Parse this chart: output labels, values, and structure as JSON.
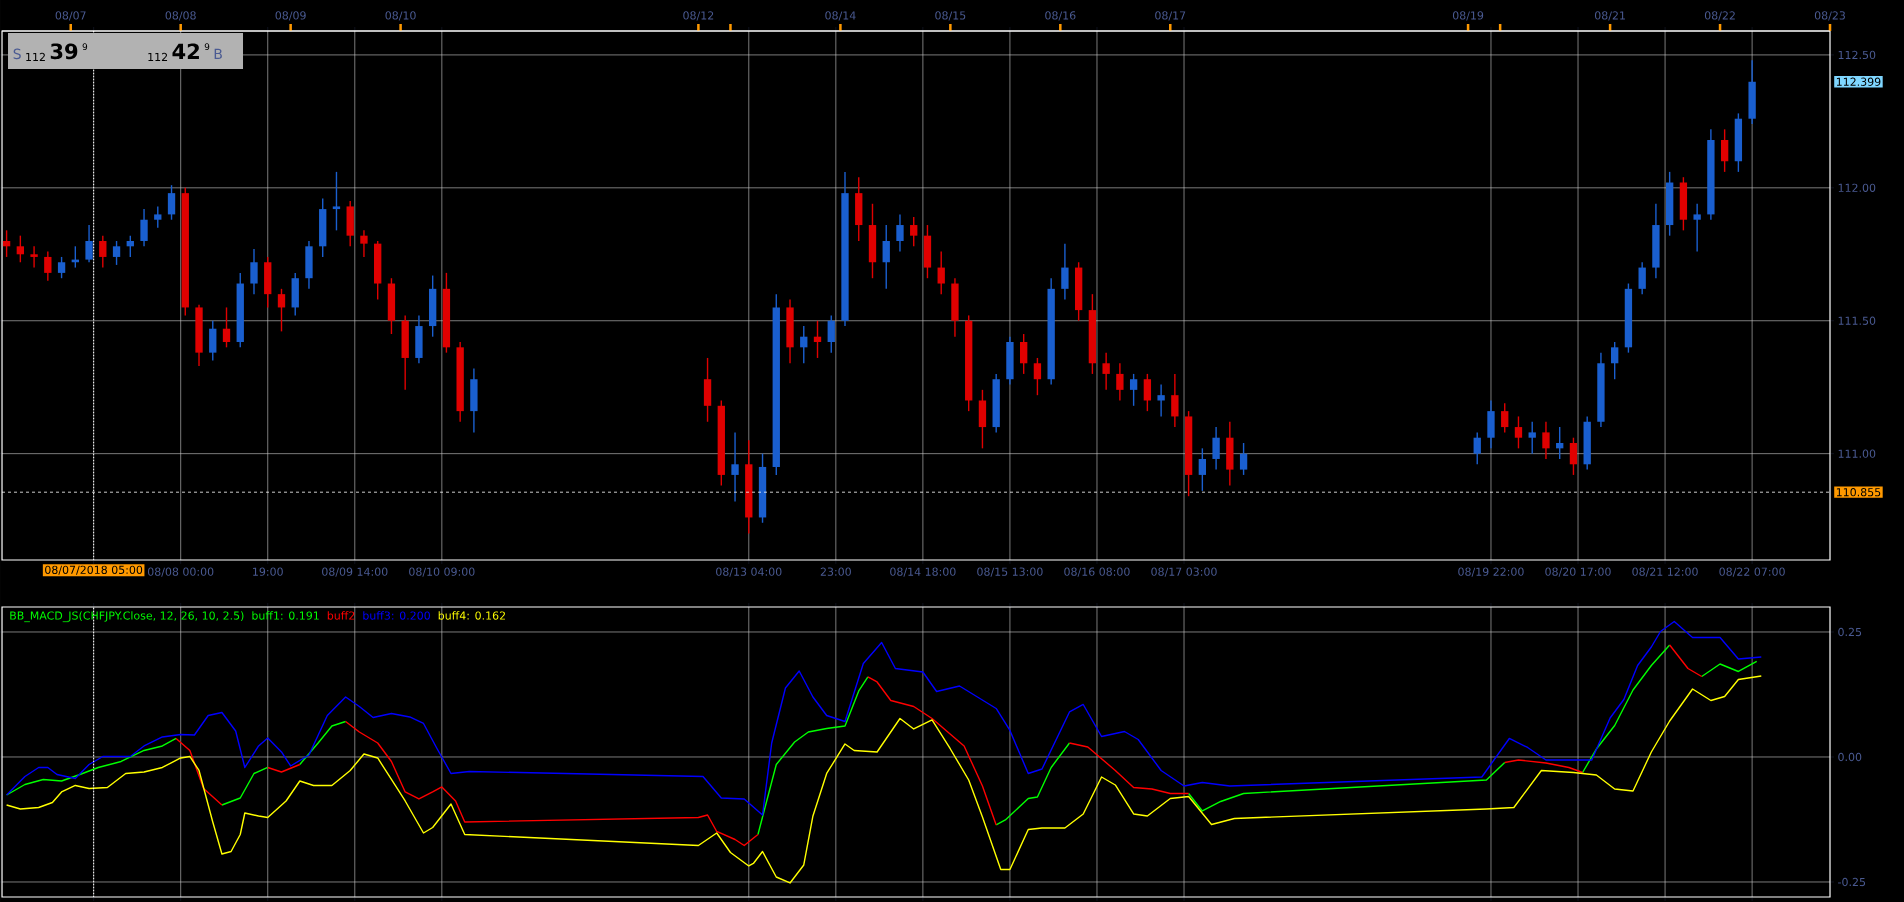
{
  "chart_data": [
    {
      "type": "candlestick",
      "x": [
        "2018-08-06T10:00",
        "2018-08-06T13:00",
        "2018-08-06T16:00",
        "2018-08-06T19:00",
        "2018-08-06T22:00",
        "2018-08-07T01:00",
        "2018-08-07T04:00",
        "2018-08-07T07:00",
        "2018-08-07T10:00",
        "2018-08-07T13:00",
        "2018-08-07T16:00",
        "2018-08-07T19:00",
        "2018-08-07T22:00",
        "2018-08-08T01:00",
        "2018-08-08T04:00",
        "2018-08-08T07:00",
        "2018-08-08T10:00",
        "2018-08-08T13:00",
        "2018-08-08T16:00",
        "2018-08-08T19:00",
        "2018-08-08T22:00",
        "2018-08-09T01:00",
        "2018-08-09T04:00",
        "2018-08-09T07:00",
        "2018-08-09T10:00",
        "2018-08-09T13:00",
        "2018-08-09T16:00",
        "2018-08-09T19:00",
        "2018-08-09T22:00",
        "2018-08-10T01:00",
        "2018-08-10T04:00",
        "2018-08-10T07:00",
        "2018-08-10T10:00",
        "2018-08-10T13:00",
        "2018-08-10T16:00",
        "2018-08-12T19:00",
        "2018-08-12T22:00",
        "2018-08-13T01:00",
        "2018-08-13T04:00",
        "2018-08-13T07:00",
        "2018-08-13T10:00",
        "2018-08-13T13:00",
        "2018-08-13T16:00",
        "2018-08-13T19:00",
        "2018-08-13T22:00",
        "2018-08-14T01:00",
        "2018-08-14T04:00",
        "2018-08-14T07:00",
        "2018-08-14T10:00",
        "2018-08-14T13:00",
        "2018-08-14T16:00",
        "2018-08-14T19:00",
        "2018-08-14T22:00",
        "2018-08-15T01:00",
        "2018-08-15T04:00",
        "2018-08-15T07:00",
        "2018-08-15T10:00",
        "2018-08-15T13:00",
        "2018-08-15T16:00",
        "2018-08-15T19:00",
        "2018-08-15T22:00",
        "2018-08-16T01:00",
        "2018-08-16T04:00",
        "2018-08-16T07:00",
        "2018-08-16T10:00",
        "2018-08-16T13:00",
        "2018-08-16T16:00",
        "2018-08-16T19:00",
        "2018-08-16T22:00",
        "2018-08-17T01:00",
        "2018-08-17T04:00",
        "2018-08-17T07:00",
        "2018-08-17T10:00",
        "2018-08-17T13:00",
        "2018-08-17T16:00",
        "2018-08-19T19:00",
        "2018-08-19T22:00",
        "2018-08-20T01:00",
        "2018-08-20T04:00",
        "2018-08-20T07:00",
        "2018-08-20T10:00",
        "2018-08-20T13:00",
        "2018-08-20T16:00",
        "2018-08-20T19:00",
        "2018-08-20T22:00",
        "2018-08-21T01:00",
        "2018-08-21T04:00",
        "2018-08-21T07:00",
        "2018-08-21T10:00",
        "2018-08-21T13:00",
        "2018-08-21T16:00",
        "2018-08-21T19:00",
        "2018-08-21T22:00",
        "2018-08-22T01:00",
        "2018-08-22T04:00",
        "2018-08-22T07:00"
      ],
      "ohlc": [
        [
          111.8,
          111.84,
          111.74,
          111.78
        ],
        [
          111.78,
          111.82,
          111.72,
          111.75
        ],
        [
          111.75,
          111.78,
          111.7,
          111.74
        ],
        [
          111.74,
          111.76,
          111.65,
          111.68
        ],
        [
          111.68,
          111.74,
          111.66,
          111.72
        ],
        [
          111.72,
          111.78,
          111.7,
          111.73
        ],
        [
          111.73,
          111.86,
          111.72,
          111.8
        ],
        [
          111.8,
          111.82,
          111.7,
          111.74
        ],
        [
          111.74,
          111.8,
          111.71,
          111.78
        ],
        [
          111.78,
          111.82,
          111.74,
          111.8
        ],
        [
          111.8,
          111.92,
          111.78,
          111.88
        ],
        [
          111.88,
          111.93,
          111.85,
          111.9
        ],
        [
          111.9,
          112.01,
          111.88,
          111.98
        ],
        [
          111.98,
          112.0,
          111.52,
          111.55
        ],
        [
          111.55,
          111.56,
          111.33,
          111.38
        ],
        [
          111.38,
          111.5,
          111.35,
          111.47
        ],
        [
          111.47,
          111.55,
          111.4,
          111.42
        ],
        [
          111.42,
          111.68,
          111.4,
          111.64
        ],
        [
          111.64,
          111.77,
          111.6,
          111.72
        ],
        [
          111.72,
          111.74,
          111.55,
          111.6
        ],
        [
          111.6,
          111.62,
          111.46,
          111.55
        ],
        [
          111.55,
          111.68,
          111.52,
          111.66
        ],
        [
          111.66,
          111.8,
          111.62,
          111.78
        ],
        [
          111.78,
          111.96,
          111.74,
          111.92
        ],
        [
          111.92,
          112.06,
          111.84,
          111.93
        ],
        [
          111.93,
          111.95,
          111.78,
          111.82
        ],
        [
          111.82,
          111.84,
          111.74,
          111.79
        ],
        [
          111.79,
          111.8,
          111.58,
          111.64
        ],
        [
          111.64,
          111.66,
          111.45,
          111.5
        ],
        [
          111.5,
          111.52,
          111.24,
          111.36
        ],
        [
          111.36,
          111.52,
          111.34,
          111.48
        ],
        [
          111.48,
          111.67,
          111.44,
          111.62
        ],
        [
          111.62,
          111.68,
          111.38,
          111.4
        ],
        [
          111.4,
          111.42,
          111.12,
          111.16
        ],
        [
          111.16,
          111.32,
          111.08,
          111.28
        ],
        [
          111.28,
          111.36,
          111.12,
          111.18
        ],
        [
          111.18,
          111.2,
          110.88,
          110.92
        ],
        [
          110.92,
          111.08,
          110.82,
          110.96
        ],
        [
          110.96,
          111.05,
          110.7,
          110.76
        ],
        [
          110.76,
          111.0,
          110.74,
          110.95
        ],
        [
          110.95,
          111.6,
          110.92,
          111.55
        ],
        [
          111.55,
          111.58,
          111.34,
          111.4
        ],
        [
          111.4,
          111.48,
          111.34,
          111.44
        ],
        [
          111.44,
          111.5,
          111.36,
          111.42
        ],
        [
          111.42,
          111.52,
          111.38,
          111.5
        ],
        [
          111.5,
          112.06,
          111.48,
          111.98
        ],
        [
          111.98,
          112.04,
          111.8,
          111.86
        ],
        [
          111.86,
          111.94,
          111.66,
          111.72
        ],
        [
          111.72,
          111.86,
          111.62,
          111.8
        ],
        [
          111.8,
          111.9,
          111.76,
          111.86
        ],
        [
          111.86,
          111.89,
          111.78,
          111.82
        ],
        [
          111.82,
          111.86,
          111.66,
          111.7
        ],
        [
          111.7,
          111.76,
          111.6,
          111.64
        ],
        [
          111.64,
          111.66,
          111.44,
          111.5
        ],
        [
          111.5,
          111.52,
          111.16,
          111.2
        ],
        [
          111.2,
          111.24,
          111.02,
          111.1
        ],
        [
          111.1,
          111.3,
          111.08,
          111.28
        ],
        [
          111.28,
          111.44,
          111.26,
          111.42
        ],
        [
          111.42,
          111.45,
          111.3,
          111.34
        ],
        [
          111.34,
          111.36,
          111.22,
          111.28
        ],
        [
          111.28,
          111.66,
          111.26,
          111.62
        ],
        [
          111.62,
          111.79,
          111.58,
          111.7
        ],
        [
          111.7,
          111.72,
          111.5,
          111.54
        ],
        [
          111.54,
          111.6,
          111.3,
          111.34
        ],
        [
          111.34,
          111.38,
          111.24,
          111.3
        ],
        [
          111.3,
          111.34,
          111.2,
          111.24
        ],
        [
          111.24,
          111.3,
          111.18,
          111.28
        ],
        [
          111.28,
          111.3,
          111.16,
          111.2
        ],
        [
          111.2,
          111.26,
          111.14,
          111.22
        ],
        [
          111.22,
          111.3,
          111.1,
          111.14
        ],
        [
          111.14,
          111.16,
          110.84,
          110.92
        ],
        [
          110.92,
          111.02,
          110.86,
          110.98
        ],
        [
          110.98,
          111.1,
          110.94,
          111.06
        ],
        [
          111.06,
          111.12,
          110.88,
          110.94
        ],
        [
          110.94,
          111.04,
          110.92,
          111.0
        ],
        [
          111.0,
          111.08,
          110.96,
          111.06
        ],
        [
          111.06,
          111.2,
          111.02,
          111.16
        ],
        [
          111.16,
          111.19,
          111.08,
          111.1
        ],
        [
          111.1,
          111.14,
          111.02,
          111.06
        ],
        [
          111.06,
          111.12,
          111.0,
          111.08
        ],
        [
          111.08,
          111.12,
          110.98,
          111.02
        ],
        [
          111.02,
          111.1,
          110.98,
          111.04
        ],
        [
          111.04,
          111.06,
          110.92,
          110.96
        ],
        [
          110.96,
          111.14,
          110.94,
          111.12
        ],
        [
          111.12,
          111.38,
          111.1,
          111.34
        ],
        [
          111.34,
          111.42,
          111.28,
          111.4
        ],
        [
          111.4,
          111.64,
          111.38,
          111.62
        ],
        [
          111.62,
          111.72,
          111.6,
          111.7
        ],
        [
          111.7,
          111.94,
          111.66,
          111.86
        ],
        [
          111.86,
          112.06,
          111.82,
          112.02
        ],
        [
          112.02,
          112.04,
          111.84,
          111.88
        ],
        [
          111.88,
          111.94,
          111.76,
          111.9
        ],
        [
          111.9,
          112.22,
          111.88,
          112.18
        ],
        [
          112.18,
          112.22,
          112.06,
          112.1
        ],
        [
          112.1,
          112.28,
          112.06,
          112.26
        ],
        [
          112.26,
          112.48,
          112.24,
          112.399
        ]
      ],
      "xlim": [
        "2018-08-06T09:00",
        "2018-08-23T00:00"
      ],
      "ylim": [
        110.6,
        112.59
      ],
      "xticks": [
        {
          "value": "2018-08-07T05:00",
          "label": null
        },
        {
          "value": "2018-08-08T00:00",
          "label": "08/08 00:00"
        },
        {
          "value": "2018-08-08T19:00",
          "label": "19:00"
        },
        {
          "value": "2018-08-09T14:00",
          "label": "08/09 14:00"
        },
        {
          "value": "2018-08-10T09:00",
          "label": "08/10 09:00"
        },
        {
          "value": "2018-08-13T04:00",
          "label": "08/13 04:00"
        },
        {
          "value": "2018-08-13T23:00",
          "label": "23:00"
        },
        {
          "value": "2018-08-14T18:00",
          "label": "08/14 18:00"
        },
        {
          "value": "2018-08-15T13:00",
          "label": "08/15 13:00"
        },
        {
          "value": "2018-08-16T08:00",
          "label": "08/16 08:00"
        },
        {
          "value": "2018-08-17T03:00",
          "label": "08/17 03:00"
        },
        {
          "value": "2018-08-19T22:00",
          "label": "08/19 22:00"
        },
        {
          "value": "2018-08-20T17:00",
          "label": "08/20 17:00"
        },
        {
          "value": "2018-08-21T12:00",
          "label": "08/21 12:00"
        },
        {
          "value": "2018-08-22T07:00",
          "label": "08/22 07:00"
        }
      ],
      "x2lim": [
        "2018-08-06T09:00",
        "2018-08-23T00:00"
      ],
      "x2ticks": [
        {
          "value": "2018-08-07T00:00",
          "label": "08/07"
        },
        {
          "value": "2018-08-08T00:00",
          "label": "08/08"
        },
        {
          "value": "2018-08-09T00:00",
          "label": "08/09"
        },
        {
          "value": "2018-08-10T00:00",
          "label": "08/10"
        },
        {
          "value": "2018-08-12T17:00",
          "label": "08/12"
        },
        {
          "value": "2018-08-13T00:00",
          "label": null
        },
        {
          "value": "2018-08-14T00:00",
          "label": "08/14"
        },
        {
          "value": "2018-08-15T00:00",
          "label": "08/15"
        },
        {
          "value": "2018-08-16T00:00",
          "label": "08/16"
        },
        {
          "value": "2018-08-17T00:00",
          "label": "08/17"
        },
        {
          "value": "2018-08-19T17:00",
          "label": "08/19"
        },
        {
          "value": "2018-08-20T00:00",
          "label": null
        },
        {
          "value": "2018-08-21T00:00",
          "label": "08/21"
        },
        {
          "value": "2018-08-22T00:00",
          "label": "08/22"
        },
        {
          "value": "2018-08-23T00:00",
          "label": "08/23"
        }
      ],
      "yticks": [
        {
          "value": 111.0,
          "label": "111.00"
        },
        {
          "value": 111.5,
          "label": "111.50"
        },
        {
          "value": 112.0,
          "label": "112.00"
        },
        {
          "value": 112.5,
          "label": "112.50"
        }
      ],
      "grid": true,
      "ref_lines": [
        {
          "axis": "x",
          "value": "2018-08-07T05:00",
          "label": "08/07/2018 05:00",
          "line_style": "dotted"
        },
        {
          "axis": "y",
          "value": 110.855,
          "label": "110.855",
          "line_style": "dashed"
        }
      ],
      "annotations": [
        "S",
        "112",
        "39",
        "9",
        "112",
        "42",
        "9",
        "B",
        "112.399"
      ]
    },
    {
      "type": "line",
      "title": "BB_MACD_JS(CHFJPY.Close, 12, 26, 10, 2.5)",
      "x": [
        "2018-08-06T10:00",
        "2018-08-06T14:00",
        "2018-08-06T18:00",
        "2018-08-06T22:00",
        "2018-08-07T02:00",
        "2018-08-07T06:00",
        "2018-08-07T11:00",
        "2018-08-07T16:00",
        "2018-08-07T20:00",
        "2018-08-07T23:00",
        "2018-08-08T02:00",
        "2018-08-08T05:00",
        "2018-08-08T09:00",
        "2018-08-08T13:00",
        "2018-08-08T16:00",
        "2018-08-08T19:00",
        "2018-08-08T22:00",
        "2018-08-09T02:00",
        "2018-08-09T06:00",
        "2018-08-09T09:00",
        "2018-08-09T12:00",
        "2018-08-09T15:00",
        "2018-08-09T19:00",
        "2018-08-09T22:00",
        "2018-08-10T01:00",
        "2018-08-10T04:00",
        "2018-08-10T07:00",
        "2018-08-10T09:00",
        "2018-08-10T12:00",
        "2018-08-10T14:00",
        "2018-08-12T17:00",
        "2018-08-12T19:00",
        "2018-08-12T21:00",
        "2018-08-13T01:00",
        "2018-08-13T03:00",
        "2018-08-13T06:00",
        "2018-08-13T10:00",
        "2018-08-13T14:00",
        "2018-08-13T17:00",
        "2018-08-13T21:00",
        "2018-08-14T01:00",
        "2018-08-14T04:00",
        "2018-08-14T06:00",
        "2018-08-14T08:00",
        "2018-08-14T11:00",
        "2018-08-14T16:00",
        "2018-08-14T20:00",
        "2018-08-15T03:00",
        "2018-08-15T07:00",
        "2018-08-15T10:00",
        "2018-08-15T12:00",
        "2018-08-15T17:00",
        "2018-08-15T19:00",
        "2018-08-15T22:00",
        "2018-08-16T02:00",
        "2018-08-16T06:00",
        "2018-08-16T12:00",
        "2018-08-16T16:00",
        "2018-08-16T20:00",
        "2018-08-17T00:00",
        "2018-08-17T04:00",
        "2018-08-17T07:00",
        "2018-08-17T11:00",
        "2018-08-17T16:00",
        "2018-08-19T21:00",
        "2018-08-20T01:00",
        "2018-08-20T04:00",
        "2018-08-20T10:00",
        "2018-08-20T15:00",
        "2018-08-20T18:00",
        "2018-08-20T21:00",
        "2018-08-21T01:00",
        "2018-08-21T05:00",
        "2018-08-21T09:00",
        "2018-08-21T13:00",
        "2018-08-21T17:00",
        "2018-08-21T20:00",
        "2018-08-22T00:00",
        "2018-08-22T04:00",
        "2018-08-22T08:00"
      ],
      "series": [
        {
          "name": "buff1: 0.191",
          "color": "#00ff00",
          "values": [
            -0.076,
            -0.055,
            -0.045,
            -0.048,
            -0.035,
            -0.021,
            -0.009,
            0.013,
            0.022,
            0.037,
            null,
            null,
            -0.096,
            -0.082,
            -0.033,
            -0.021,
            null,
            -0.015,
            0.028,
            0.062,
            0.071,
            null,
            null,
            null,
            null,
            null,
            null,
            null,
            null,
            null,
            null,
            null,
            null,
            null,
            null,
            -0.155,
            -0.015,
            0.03,
            0.05,
            0.057,
            0.062,
            0.132,
            0.16,
            null,
            null,
            null,
            null,
            null,
            null,
            -0.136,
            -0.126,
            -0.083,
            -0.08,
            -0.021,
            0.028,
            null,
            null,
            null,
            null,
            null,
            -0.073,
            -0.108,
            -0.089,
            -0.073,
            -0.046,
            -0.011,
            null,
            null,
            null,
            -0.031,
            0.016,
            0.063,
            0.134,
            0.183,
            0.224,
            null,
            0.161,
            0.186,
            0.171,
            0.191
          ]
        },
        {
          "name": "buff2",
          "color": "#ff0000",
          "values": [
            null,
            null,
            null,
            null,
            null,
            null,
            null,
            null,
            null,
            0.037,
            0.013,
            -0.063,
            -0.096,
            null,
            null,
            -0.021,
            -0.03,
            -0.015,
            null,
            null,
            0.071,
            0.05,
            0.028,
            -0.009,
            -0.07,
            -0.084,
            -0.07,
            -0.06,
            -0.088,
            -0.13,
            -0.121,
            -0.116,
            -0.149,
            -0.165,
            -0.177,
            -0.155,
            null,
            null,
            null,
            null,
            null,
            null,
            0.16,
            0.15,
            0.113,
            0.101,
            0.077,
            0.022,
            -0.058,
            -0.136,
            null,
            null,
            null,
            null,
            0.028,
            0.02,
            -0.027,
            -0.061,
            -0.064,
            -0.073,
            -0.073,
            null,
            null,
            null,
            null,
            -0.011,
            -0.006,
            -0.012,
            -0.021,
            -0.031,
            null,
            null,
            null,
            null,
            0.224,
            0.177,
            0.161,
            null,
            null,
            null
          ]
        },
        {
          "name": "buff3: 0.200",
          "color": "#0000ff",
          "x": [
            "2018-08-06T10:00",
            "2018-08-06T14:00",
            "2018-08-06T17:00",
            "2018-08-06T19:00",
            "2018-08-06T21:00",
            "2018-08-07T01:00",
            "2018-08-07T04:00",
            "2018-08-07T07:00",
            "2018-08-07T13:00",
            "2018-08-07T16:00",
            "2018-08-07T20:00",
            "2018-08-08T00:00",
            "2018-08-08T03:00",
            "2018-08-08T06:00",
            "2018-08-08T09:00",
            "2018-08-08T12:00",
            "2018-08-08T14:00",
            "2018-08-08T17:00",
            "2018-08-08T19:00",
            "2018-08-08T22:00",
            "2018-08-09T00:00",
            "2018-08-09T04:00",
            "2018-08-09T08:00",
            "2018-08-09T12:00",
            "2018-08-09T15:00",
            "2018-08-09T18:00",
            "2018-08-09T22:00",
            "2018-08-10T02:00",
            "2018-08-10T05:00",
            "2018-08-10T08:00",
            "2018-08-10T11:00",
            "2018-08-10T15:00",
            "2018-08-12T18:00",
            "2018-08-12T22:00",
            "2018-08-13T03:00",
            "2018-08-13T07:00",
            "2018-08-13T09:00",
            "2018-08-13T12:00",
            "2018-08-13T15:00",
            "2018-08-13T18:00",
            "2018-08-13T21:00",
            "2018-08-14T01:00",
            "2018-08-14T05:00",
            "2018-08-14T09:00",
            "2018-08-14T12:00",
            "2018-08-14T18:00",
            "2018-08-14T21:00",
            "2018-08-15T02:00",
            "2018-08-15T10:00",
            "2018-08-15T13:00",
            "2018-08-15T17:00",
            "2018-08-15T20:00",
            "2018-08-16T02:00",
            "2018-08-16T05:00",
            "2018-08-16T09:00",
            "2018-08-16T14:00",
            "2018-08-16T17:00",
            "2018-08-16T22:00",
            "2018-08-17T03:00",
            "2018-08-17T07:00",
            "2018-08-17T13:00",
            "2018-08-19T20:00",
            "2018-08-20T02:00",
            "2018-08-20T06:00",
            "2018-08-20T10:00",
            "2018-08-20T20:00",
            "2018-08-21T00:00",
            "2018-08-21T03:00",
            "2018-08-21T06:00",
            "2018-08-21T09:00",
            "2018-08-21T11:00",
            "2018-08-21T14:00",
            "2018-08-21T18:00",
            "2018-08-22T00:00",
            "2018-08-22T04:00",
            "2018-08-22T09:00"
          ],
          "values": [
            -0.076,
            -0.039,
            -0.021,
            -0.021,
            -0.035,
            -0.043,
            -0.015,
            0.001,
            0.001,
            0.022,
            0.04,
            0.045,
            0.044,
            0.083,
            0.089,
            0.052,
            -0.021,
            0.022,
            0.038,
            0.01,
            -0.018,
            0.004,
            0.083,
            0.12,
            0.101,
            0.079,
            0.087,
            0.08,
            0.067,
            0.016,
            -0.033,
            -0.029,
            -0.039,
            -0.082,
            -0.084,
            -0.116,
            0.028,
            0.138,
            0.172,
            0.12,
            0.083,
            0.071,
            0.187,
            0.229,
            0.177,
            0.17,
            0.131,
            0.142,
            0.097,
            0.053,
            -0.033,
            -0.024,
            0.09,
            0.105,
            0.041,
            0.051,
            0.035,
            -0.027,
            -0.058,
            -0.051,
            -0.058,
            -0.04,
            0.037,
            0.019,
            -0.006,
            -0.006,
            0.078,
            0.115,
            0.183,
            0.22,
            0.251,
            0.271,
            0.239,
            0.239,
            0.196,
            0.2
          ]
        },
        {
          "name": "buff4: 0.162",
          "color": "#ffff00",
          "x": [
            "2018-08-06T10:00",
            "2018-08-06T13:00",
            "2018-08-06T17:00",
            "2018-08-06T20:00",
            "2018-08-06T22:00",
            "2018-08-07T01:00",
            "2018-08-07T04:00",
            "2018-08-07T08:00",
            "2018-08-07T12:00",
            "2018-08-07T16:00",
            "2018-08-07T20:00",
            "2018-08-08T00:00",
            "2018-08-08T02:00",
            "2018-08-08T04:00",
            "2018-08-08T07:00",
            "2018-08-08T09:00",
            "2018-08-08T11:00",
            "2018-08-08T13:00",
            "2018-08-08T14:00",
            "2018-08-08T17:00",
            "2018-08-08T19:00",
            "2018-08-08T23:00",
            "2018-08-09T02:00",
            "2018-08-09T05:00",
            "2018-08-09T09:00",
            "2018-08-09T13:00",
            "2018-08-09T16:00",
            "2018-08-09T19:00",
            "2018-08-09T22:00",
            "2018-08-10T01:00",
            "2018-08-10T05:00",
            "2018-08-10T07:00",
            "2018-08-10T11:00",
            "2018-08-10T14:00",
            "2018-08-12T17:00",
            "2018-08-12T21:00",
            "2018-08-13T00:00",
            "2018-08-13T04:00",
            "2018-08-13T05:00",
            "2018-08-13T07:00",
            "2018-08-13T10:00",
            "2018-08-13T13:00",
            "2018-08-13T16:00",
            "2018-08-13T18:00",
            "2018-08-13T21:00",
            "2018-08-14T01:00",
            "2018-08-14T03:00",
            "2018-08-14T08:00",
            "2018-08-14T13:00",
            "2018-08-14T16:00",
            "2018-08-14T20:00",
            "2018-08-15T00:00",
            "2018-08-15T04:00",
            "2018-08-15T07:00",
            "2018-08-15T11:00",
            "2018-08-15T13:00",
            "2018-08-15T17:00",
            "2018-08-15T20:00",
            "2018-08-16T01:00",
            "2018-08-16T05:00",
            "2018-08-16T09:00",
            "2018-08-16T12:00",
            "2018-08-16T16:00",
            "2018-08-16T19:00",
            "2018-08-17T00:00",
            "2018-08-17T04:00",
            "2018-08-17T09:00",
            "2018-08-17T14:00",
            "2018-08-19T21:00",
            "2018-08-20T03:00",
            "2018-08-20T09:00",
            "2018-08-20T16:00",
            "2018-08-20T21:00",
            "2018-08-21T01:00",
            "2018-08-21T05:00",
            "2018-08-21T09:00",
            "2018-08-21T13:00",
            "2018-08-21T18:00",
            "2018-08-21T22:00",
            "2018-08-22T01:00",
            "2018-08-22T04:00",
            "2018-08-22T09:00"
          ],
          "values": [
            -0.096,
            -0.104,
            -0.101,
            -0.091,
            -0.07,
            -0.057,
            -0.063,
            -0.061,
            -0.033,
            -0.03,
            -0.021,
            -0.002,
            0.001,
            -0.027,
            -0.13,
            -0.194,
            -0.189,
            -0.155,
            -0.112,
            -0.118,
            -0.121,
            -0.088,
            -0.048,
            -0.057,
            -0.057,
            -0.027,
            0.006,
            -0.002,
            -0.045,
            -0.088,
            -0.152,
            -0.141,
            -0.094,
            -0.155,
            -0.177,
            -0.152,
            -0.191,
            -0.218,
            -0.213,
            -0.189,
            -0.24,
            -0.252,
            -0.216,
            -0.118,
            -0.033,
            0.026,
            0.013,
            0.01,
            0.077,
            0.056,
            0.074,
            0.016,
            -0.046,
            -0.12,
            -0.225,
            -0.225,
            -0.145,
            -0.142,
            -0.142,
            -0.114,
            -0.04,
            -0.056,
            -0.114,
            -0.118,
            -0.083,
            -0.079,
            -0.135,
            -0.123,
            -0.104,
            -0.101,
            -0.027,
            -0.031,
            -0.036,
            -0.064,
            -0.068,
            0.01,
            0.072,
            0.136,
            0.113,
            0.121,
            0.155,
            0.162
          ]
        }
      ],
      "xlim": [
        "2018-08-06T09:00",
        "2018-08-23T00:00"
      ],
      "ylim": [
        -0.28,
        0.3
      ],
      "xticks": [
        {
          "value": "2018-08-07T05:00",
          "label": null
        },
        {
          "value": "2018-08-08T00:00",
          "label": null
        },
        {
          "value": "2018-08-08T19:00",
          "label": null
        },
        {
          "value": "2018-08-09T14:00",
          "label": null
        },
        {
          "value": "2018-08-10T09:00",
          "label": null
        },
        {
          "value": "2018-08-13T04:00",
          "label": null
        },
        {
          "value": "2018-08-13T23:00",
          "label": null
        },
        {
          "value": "2018-08-14T18:00",
          "label": null
        },
        {
          "value": "2018-08-15T13:00",
          "label": null
        },
        {
          "value": "2018-08-16T08:00",
          "label": null
        },
        {
          "value": "2018-08-17T03:00",
          "label": null
        },
        {
          "value": "2018-08-19T22:00",
          "label": null
        },
        {
          "value": "2018-08-20T17:00",
          "label": null
        },
        {
          "value": "2018-08-21T12:00",
          "label": null
        },
        {
          "value": "2018-08-22T07:00",
          "label": null
        }
      ],
      "yticks": [
        {
          "value": -0.25,
          "label": "-0.25"
        },
        {
          "value": 0,
          "label": "0.00"
        },
        {
          "value": 0.25,
          "label": "0.25"
        }
      ],
      "tick_labels": "y",
      "grid": true,
      "legend": "top left",
      "ref_lines": [
        {
          "axis": "x",
          "value": "2018-08-07T05:00",
          "line_style": "dotted"
        }
      ]
    }
  ]
}
